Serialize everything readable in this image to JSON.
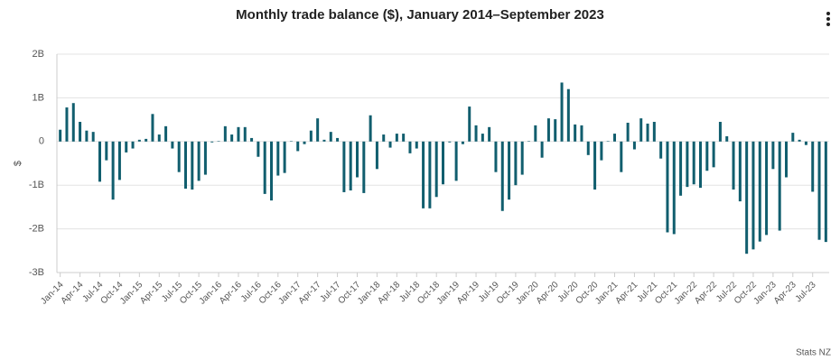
{
  "chart_data": {
    "type": "bar",
    "title": "Monthly trade balance ($), January 2014–September 2023",
    "y_label": "$",
    "credits": "Stats NZ",
    "color": "#115e6e",
    "grid": true,
    "ylim": [
      -3000000000.0,
      2000000000.0
    ],
    "yticks": [
      {
        "value": 2000000000.0,
        "label": "2B"
      },
      {
        "value": 1000000000.0,
        "label": "1B"
      },
      0,
      {
        "value": -1000000000.0,
        "label": "-1B"
      },
      {
        "value": -2000000000.0,
        "label": "-2B"
      },
      {
        "value": -3000000000.0,
        "label": "-3B"
      }
    ],
    "categories": [
      "Jan-14",
      null,
      null,
      "Apr-14",
      null,
      null,
      "Jul-14",
      null,
      null,
      "Oct-14",
      null,
      null,
      "Jan-15",
      null,
      null,
      "Apr-15",
      null,
      null,
      "Jul-15",
      null,
      null,
      "Oct-15",
      null,
      null,
      "Jan-16",
      null,
      null,
      "Apr-16",
      null,
      null,
      "Jul-16",
      null,
      null,
      "Oct-16",
      null,
      null,
      "Jan-17",
      null,
      null,
      "Apr-17",
      null,
      null,
      "Jul-17",
      null,
      null,
      "Oct-17",
      null,
      null,
      "Jan-18",
      null,
      null,
      "Apr-18",
      null,
      null,
      "Jul-18",
      null,
      null,
      "Oct-18",
      null,
      null,
      "Jan-19",
      null,
      null,
      "Apr-19",
      null,
      null,
      "Jul-19",
      null,
      null,
      "Oct-19",
      null,
      null,
      "Jan-20",
      null,
      null,
      "Apr-20",
      null,
      null,
      "Jul-20",
      null,
      null,
      "Oct-20",
      null,
      null,
      "Jan-21",
      null,
      null,
      "Apr-21",
      null,
      null,
      "Jul-21",
      null,
      null,
      "Oct-21",
      null,
      null,
      "Jan-22",
      null,
      null,
      "Apr-22",
      null,
      null,
      "Jul-22",
      null,
      null,
      "Oct-22",
      null,
      null,
      "Jan-23",
      null,
      null,
      "Apr-23",
      null,
      null,
      "Jul-23",
      null,
      null
    ],
    "values": [
      270000000.0,
      780000000.0,
      880000000.0,
      450000000.0,
      250000000.0,
      220000000.0,
      -920000000.0,
      -430000000.0,
      -1330000000.0,
      -880000000.0,
      -250000000.0,
      -160000000.0,
      40000000.0,
      60000000.0,
      630000000.0,
      160000000.0,
      350000000.0,
      -160000000.0,
      -700000000.0,
      -1080000000.0,
      -1100000000.0,
      -900000000.0,
      -760000000.0,
      -20000000.0,
      10000000.0,
      350000000.0,
      160000000.0,
      330000000.0,
      330000000.0,
      80000000.0,
      -350000000.0,
      -1200000000.0,
      -1350000000.0,
      -780000000.0,
      -720000000.0,
      10000000.0,
      -220000000.0,
      -60000000.0,
      250000000.0,
      530000000.0,
      40000000.0,
      220000000.0,
      80000000.0,
      -1160000000.0,
      -1120000000.0,
      -820000000.0,
      -1180000000.0,
      600000000.0,
      -630000000.0,
      160000000.0,
      -140000000.0,
      180000000.0,
      180000000.0,
      -270000000.0,
      -160000000.0,
      -1530000000.0,
      -1530000000.0,
      -1270000000.0,
      -980000000.0,
      -20000000.0,
      -900000000.0,
      -60000000.0,
      800000000.0,
      370000000.0,
      180000000.0,
      330000000.0,
      -700000000.0,
      -1590000000.0,
      -1330000000.0,
      -1000000000.0,
      -760000000.0,
      10000000.0,
      370000000.0,
      -370000000.0,
      530000000.0,
      510000000.0,
      1350000000.0,
      1200000000.0,
      390000000.0,
      370000000.0,
      -310000000.0,
      -1100000000.0,
      -430000000.0,
      10000000.0,
      180000000.0,
      -700000000.0,
      430000000.0,
      -180000000.0,
      530000000.0,
      410000000.0,
      450000000.0,
      -390000000.0,
      -2080000000.0,
      -2120000000.0,
      -1240000000.0,
      -1040000000.0,
      -980000000.0,
      -1060000000.0,
      -670000000.0,
      -590000000.0,
      450000000.0,
      120000000.0,
      -1100000000.0,
      -1370000000.0,
      -2570000000.0,
      -2470000000.0,
      -2290000000.0,
      -2140000000.0,
      -630000000.0,
      -2040000000.0,
      -820000000.0,
      200000000.0,
      40000000.0,
      -80000000.0,
      -1150000000.0,
      -2250000000.0,
      -2300000000.0
    ]
  }
}
